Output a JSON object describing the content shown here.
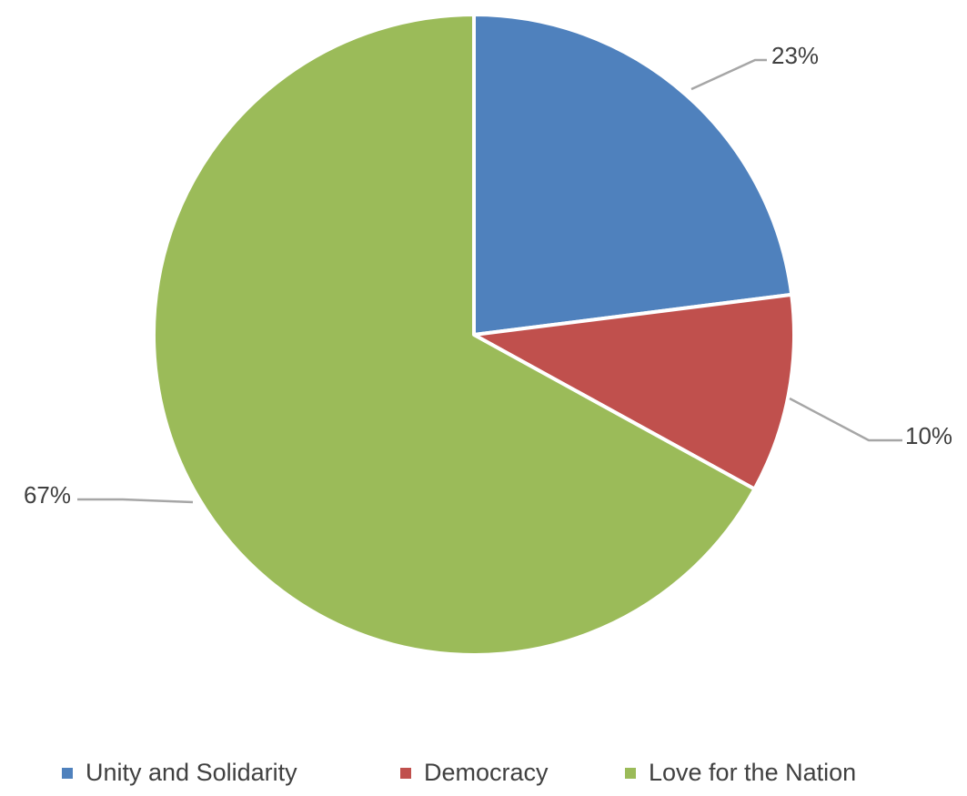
{
  "chart_data": {
    "type": "pie",
    "title": "",
    "categories": [
      "Unity and Solidarity",
      "Democracy",
      "Love for the Nation"
    ],
    "values": [
      23,
      10,
      67
    ],
    "labels": [
      "23%",
      "10%",
      "67%"
    ],
    "colors": [
      "#4f81bd",
      "#c0504d",
      "#9bbb59"
    ],
    "start_angle_deg": 0,
    "direction": "clockwise",
    "legend": {
      "position": "bottom",
      "entries": [
        "Unity and Solidarity",
        "Democracy",
        "Love for the Nation"
      ]
    }
  }
}
